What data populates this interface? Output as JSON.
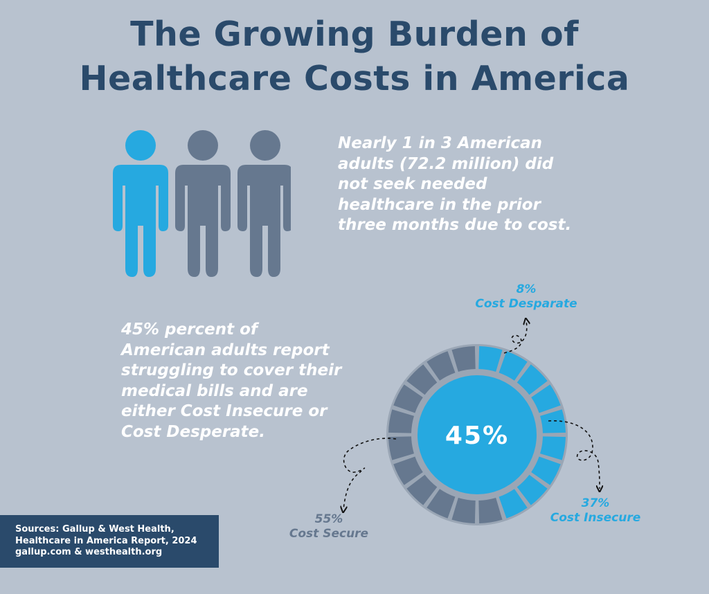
{
  "title": {
    "line1": "The Growing Burden of",
    "line2": "Healthcare Costs in America"
  },
  "stat_people": {
    "line1": "Nearly 1 in 3 American",
    "line2": "adults (72.2 million) did",
    "line3": "not seek needed",
    "line4": "healthcare in the prior",
    "line5": "three months due to cost.",
    "highlighted_count": 1,
    "total_count": 3
  },
  "stat_bills": {
    "line1": "45% percent of",
    "line2": "American adults report",
    "line3": "struggling to cover their",
    "line4": "medical bills and are",
    "line5": "either Cost Insecure or",
    "line6": "Cost Desperate."
  },
  "chart_data": {
    "type": "pie",
    "style": "segmented-donut",
    "center_label": "45%",
    "segments_total": 20,
    "slices": [
      {
        "name": "Cost Insecure",
        "value": 37,
        "percent_label": "37%",
        "color": "#26a9e0"
      },
      {
        "name": "Cost Desparate",
        "value": 8,
        "percent_label": "8%",
        "color": "#26a9e0"
      },
      {
        "name": "Cost Secure",
        "value": 55,
        "percent_label": "55%",
        "color": "#66788f"
      }
    ]
  },
  "source": {
    "line1": "Sources: Gallup & West Health,",
    "line2": "Healthcare in America Report, 2024",
    "line3": "gallup.com & westhealth.org"
  },
  "colors": {
    "background": "#b8c2cf",
    "title": "#2a4a6b",
    "accent": "#26a9e0",
    "muted": "#66788f",
    "source_bg": "#2a4a6b",
    "ring_gap": "#9aa6b5"
  }
}
